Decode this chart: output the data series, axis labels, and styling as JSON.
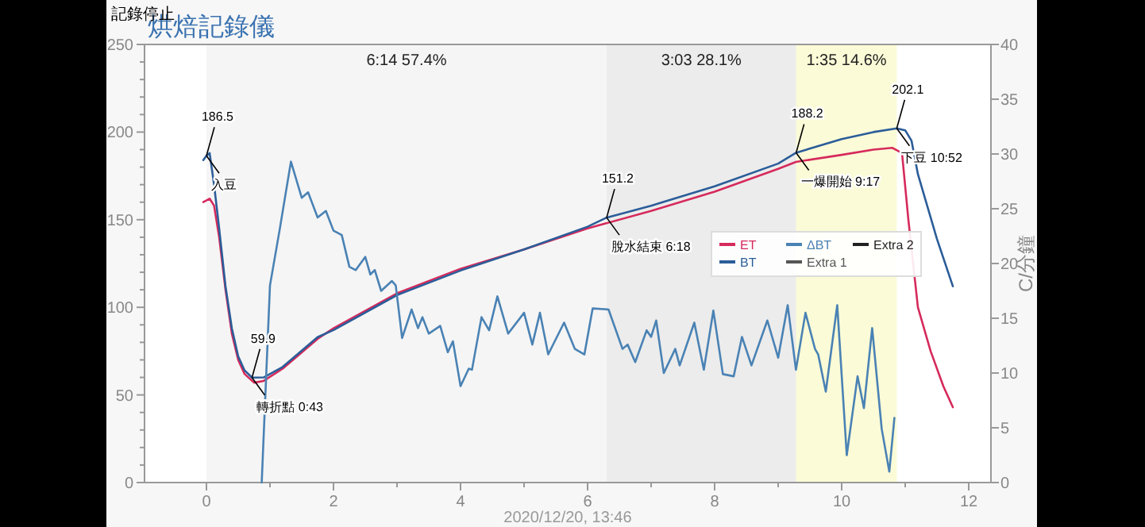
{
  "chart_data": {
    "type": "line",
    "title": "烘焙記錄儀",
    "y2label": "C/分鐘",
    "xlim": [
      -0.975,
      12.35
    ],
    "ylim": [
      0,
      250
    ],
    "y2lim": [
      0,
      40
    ],
    "xticks": [
      0,
      {
        "value": 1,
        "label": null
      },
      2,
      {
        "value": 3,
        "label": null
      },
      4,
      {
        "value": 5,
        "label": null
      },
      6,
      {
        "value": 7,
        "label": null
      },
      8,
      {
        "value": 9,
        "label": null
      },
      10,
      {
        "value": 11,
        "label": null
      },
      12
    ],
    "yticks": [
      0,
      {
        "value": 10,
        "label": null
      },
      {
        "value": 20,
        "label": null
      },
      {
        "value": 30,
        "label": null
      },
      {
        "value": 40,
        "label": null
      },
      50,
      {
        "value": 60,
        "label": null
      },
      {
        "value": 70,
        "label": null
      },
      {
        "value": 80,
        "label": null
      },
      {
        "value": 90,
        "label": null
      },
      100,
      {
        "value": 110,
        "label": null
      },
      {
        "value": 120,
        "label": null
      },
      {
        "value": 130,
        "label": null
      },
      {
        "value": 140,
        "label": null
      },
      150,
      {
        "value": 160,
        "label": null
      },
      {
        "value": 170,
        "label": null
      },
      {
        "value": 180,
        "label": null
      },
      {
        "value": 190,
        "label": null
      },
      200,
      {
        "value": 210,
        "label": null
      },
      {
        "value": 220,
        "label": null
      },
      {
        "value": 230,
        "label": null
      },
      {
        "value": 240,
        "label": null
      },
      250
    ],
    "y2ticks": [
      0,
      5,
      10,
      15,
      20,
      25,
      30,
      35,
      40
    ],
    "legend": "right",
    "grid": false,
    "series": [
      {
        "name": "ET",
        "color": "#d62a5c",
        "x": [
          -0.05,
          0.05,
          0.12,
          0.2,
          0.3,
          0.4,
          0.5,
          0.6,
          0.75,
          0.9,
          1.2,
          1.75,
          2,
          3,
          4,
          5,
          6,
          7,
          8,
          9,
          9.28,
          10,
          10.5,
          10.8,
          10.95,
          11.05,
          11.2,
          11.4,
          11.6,
          11.75
        ],
        "values": [
          160,
          162,
          158,
          140,
          110,
          85,
          70,
          62,
          57,
          58,
          65,
          82,
          88,
          108,
          122,
          133,
          145,
          155,
          166,
          179,
          183,
          187,
          190,
          191,
          188,
          150,
          100,
          75,
          55,
          43
        ]
      },
      {
        "name": "BT",
        "color": "#2b5d99",
        "x": [
          -0.05,
          0,
          0.05,
          0.12,
          0.2,
          0.3,
          0.4,
          0.5,
          0.6,
          0.717,
          0.9,
          1.2,
          1.75,
          2,
          3,
          4,
          5,
          6,
          6.3,
          7,
          8,
          9,
          9.283,
          10,
          10.5,
          10.867,
          11,
          11.1,
          11.2,
          11.5,
          11.75
        ],
        "values": [
          184,
          186.5,
          188,
          170,
          145,
          112,
          88,
          72,
          64,
          59.9,
          60,
          66,
          83,
          87,
          107,
          121,
          133,
          146,
          151.2,
          158,
          169,
          182,
          188.2,
          196,
          200,
          202.1,
          201,
          195,
          176,
          139,
          112
        ]
      },
      {
        "name": "ΔBT",
        "color": "#4a82b4",
        "axis": "y2",
        "x": [
          0.87,
          1.0,
          1.15,
          1.33,
          1.5,
          1.6,
          1.75,
          1.88,
          2.0,
          2.13,
          2.25,
          2.35,
          2.5,
          2.58,
          2.65,
          2.75,
          2.92,
          2.98,
          3.08,
          3.23,
          3.33,
          3.4,
          3.5,
          3.68,
          3.8,
          3.88,
          4.0,
          4.13,
          4.18,
          4.33,
          4.45,
          4.58,
          4.75,
          5.0,
          5.13,
          5.25,
          5.38,
          5.63,
          5.8,
          5.95,
          6.08,
          6.33,
          6.55,
          6.63,
          6.75,
          6.93,
          7.0,
          7.08,
          7.2,
          7.38,
          7.45,
          7.68,
          7.83,
          7.98,
          8.13,
          8.3,
          8.43,
          8.58,
          8.83,
          9.0,
          9.15,
          9.28,
          9.43,
          9.58,
          9.63,
          9.75,
          9.93,
          10.08,
          10.25,
          10.35,
          10.48,
          10.63,
          10.75,
          10.83
        ],
        "values": [
          0,
          18,
          23,
          29.3,
          26,
          26.5,
          24.2,
          24.8,
          23,
          22.6,
          19.7,
          19.4,
          20.6,
          19,
          19.4,
          17.5,
          18.4,
          18,
          13.2,
          15.8,
          14.1,
          15.1,
          13.6,
          14.3,
          11.9,
          12.9,
          8.8,
          10.4,
          10.3,
          15.1,
          13.9,
          17,
          13.6,
          15.5,
          12.6,
          15.5,
          11.7,
          14.6,
          12.2,
          11.7,
          15.9,
          15.8,
          12.2,
          12.6,
          11,
          13.9,
          13.3,
          14.8,
          10,
          12.2,
          10.7,
          14.6,
          10.3,
          15.7,
          9.9,
          9.7,
          13.3,
          10.7,
          14.8,
          11.4,
          16.2,
          10.3,
          15.5,
          12.2,
          11.7,
          8.3,
          16.2,
          2.5,
          9.7,
          6.8,
          14.1,
          4.9,
          1.0,
          5.9
        ]
      },
      {
        "name": "Extra 1",
        "color": "#555555"
      },
      {
        "name": "Extra 2",
        "color": "#222222"
      }
    ],
    "bands": [
      {
        "axis": "x",
        "from": 0,
        "to": 6.3,
        "label": "6:14  57.4%",
        "color": "#e6e6e6"
      },
      {
        "axis": "x",
        "from": 6.3,
        "to": 9.283,
        "label": "3:03  28.1%",
        "color": "#cfcfcf"
      },
      {
        "axis": "x",
        "from": 9.283,
        "to": 10.867,
        "label": "1:35  14.6%",
        "color": "#f4f49a"
      }
    ],
    "annotations": [
      "記錄停止",
      {
        "text": "186.5",
        "x": 0,
        "y": 186.5
      },
      {
        "text": "入豆",
        "x": 0,
        "y": 186.5
      },
      {
        "text": "59.9",
        "x": 0.717,
        "y": 59.9
      },
      {
        "text": "轉折點 0:43",
        "x": 0.717,
        "y": 59.9
      },
      {
        "text": "151.2",
        "x": 6.3,
        "y": 151.2
      },
      {
        "text": "脫水結束 6:18",
        "x": 6.3,
        "y": 151.2
      },
      {
        "text": "188.2",
        "x": 9.283,
        "y": 188.2
      },
      {
        "text": "一爆開始 9:17",
        "x": 9.283,
        "y": 188.2
      },
      {
        "text": "202.1",
        "x": 10.867,
        "y": 202.1
      },
      {
        "text": "下豆 10:52",
        "x": 10.867,
        "y": 202.1
      },
      "2020/12/20, 13:46"
    ]
  }
}
